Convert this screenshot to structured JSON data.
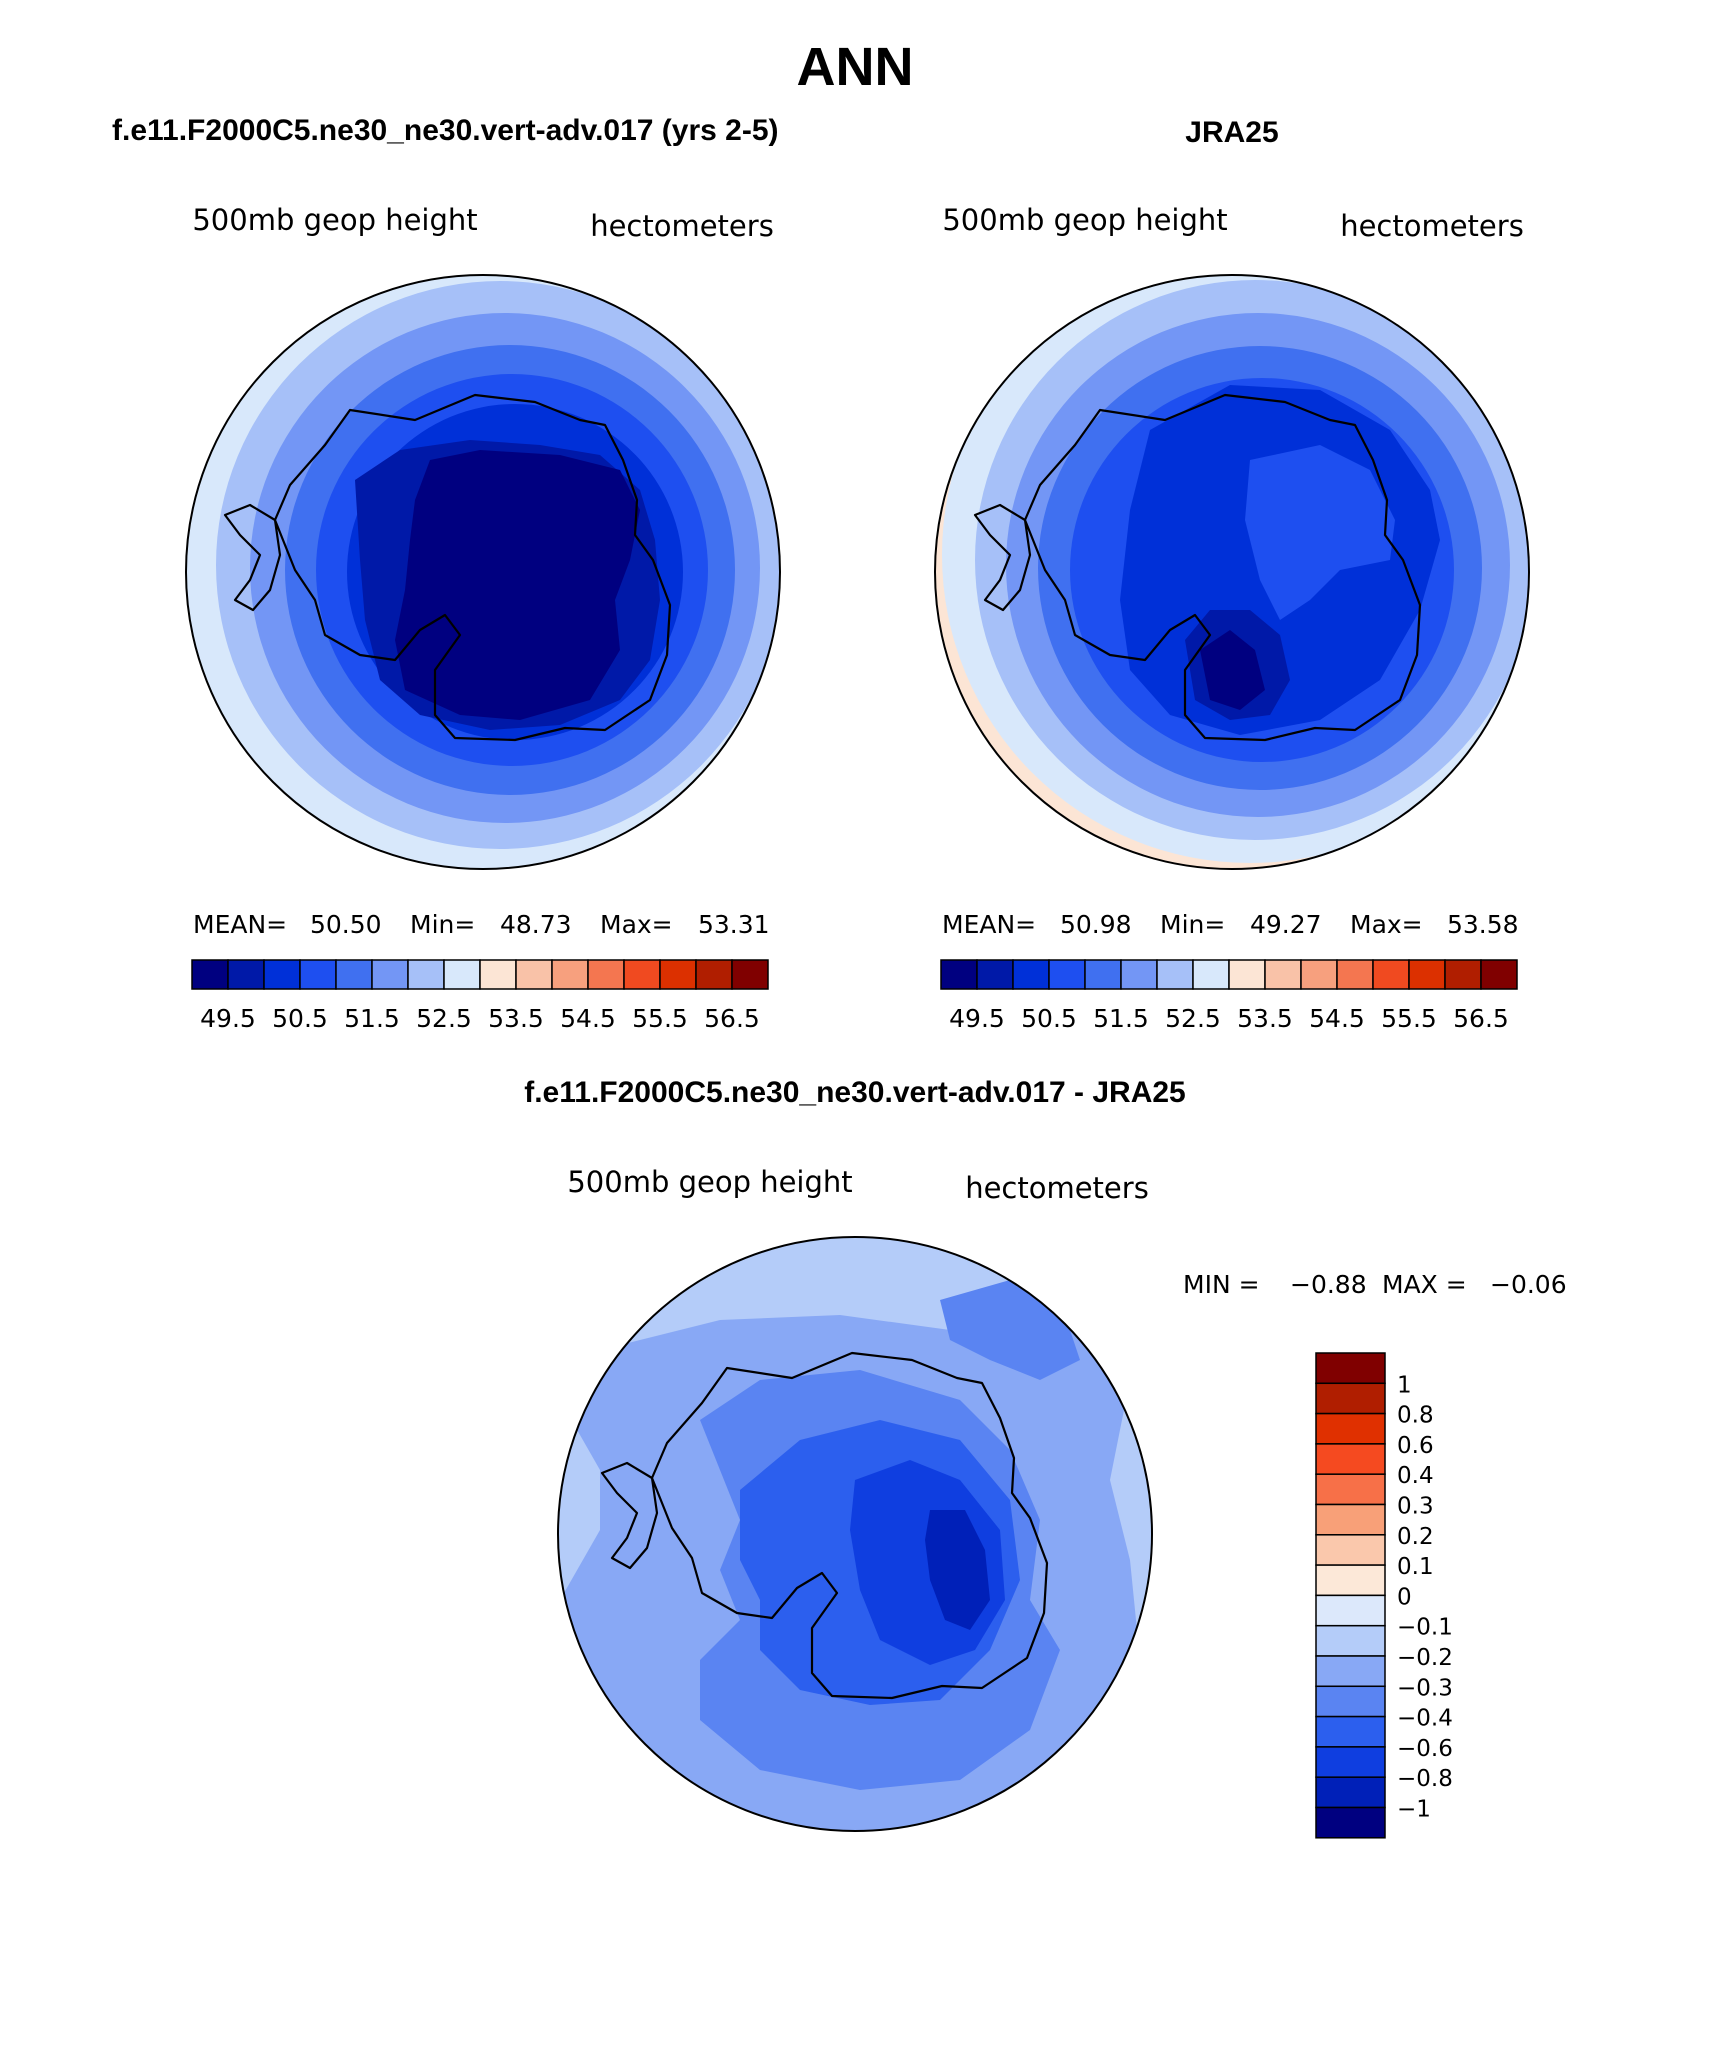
{
  "page": {
    "title": "ANN"
  },
  "panels": [
    {
      "id": "model",
      "header": "f.e11.F2000C5.ne30_ne30.vert-adv.017 (yrs 2-5)",
      "left_label": "500mb  geop  height",
      "right_label": "hectometers",
      "stats": {
        "mean_label": "MEAN=",
        "mean": "50.50",
        "min_label": "Min=",
        "min": "48.73",
        "max_label": "Max=",
        "max": "53.31"
      }
    },
    {
      "id": "obs",
      "header": "JRA25",
      "left_label": "500mb  geop  height",
      "right_label": "hectometers",
      "stats": {
        "mean_label": "MEAN=",
        "mean": "50.98",
        "min_label": "Min=",
        "min": "49.27",
        "max_label": "Max=",
        "max": "53.58"
      }
    },
    {
      "id": "diff",
      "header": "f.e11.F2000C5.ne30_ne30.vert-adv.017 - JRA25",
      "left_label": "500mb  geop  height",
      "right_label": "hectometers",
      "stats": {
        "min_label": "MIN =",
        "min": "−0.88",
        "max_label": "MAX =",
        "max": "−0.06"
      }
    }
  ],
  "colorbars": {
    "absolute": {
      "colors": [
        "#000080",
        "#0019A8",
        "#0030D8",
        "#1E4FF0",
        "#4070F0",
        "#7396F5",
        "#A6C0F8",
        "#D8E8FB",
        "#FCE5D5",
        "#F9C2A8",
        "#F7A07E",
        "#F47650",
        "#F04A20",
        "#DC3000",
        "#B01E00",
        "#800000"
      ],
      "tick_labels": [
        "49.5",
        "50.5",
        "51.5",
        "52.5",
        "53.5",
        "54.5",
        "55.5",
        "56.5"
      ]
    },
    "difference": {
      "colors": [
        "#800000",
        "#B01E00",
        "#E03000",
        "#F54A20",
        "#F77048",
        "#F8A078",
        "#FAC8AC",
        "#FCE8D8",
        "#DCE8FB",
        "#B4CCF9",
        "#88A8F5",
        "#5A84F2",
        "#2C5FEE",
        "#0F3EE0",
        "#0020B8",
        "#000080"
      ],
      "tick_labels": [
        "1",
        "0.8",
        "0.6",
        "0.4",
        "0.3",
        "0.2",
        "0.1",
        "0",
        "−0.1",
        "−0.2",
        "−0.3",
        "−0.4",
        "−0.6",
        "−0.8",
        "−1"
      ]
    }
  },
  "chart_data": [
    {
      "type": "heatmap",
      "title": "f.e11.F2000C5.ne30_ne30.vert-adv.017 (yrs 2-5)",
      "variable": "500mb geop height",
      "units": "hectometers",
      "projection": "south polar stereographic",
      "contour_levels": [
        49.5,
        49.75,
        50.0,
        50.25,
        50.5,
        50.75,
        51.0,
        51.25,
        51.5,
        51.75,
        52.0,
        52.25,
        52.5
      ],
      "statistics": {
        "mean": 50.5,
        "min": 48.73,
        "max": 53.31
      }
    },
    {
      "type": "heatmap",
      "title": "JRA25",
      "variable": "500mb geop height",
      "units": "hectometers",
      "projection": "south polar stereographic",
      "contour_levels": [
        49.5,
        49.75,
        50.0,
        50.25,
        50.5,
        50.75,
        51.0,
        51.25,
        51.5,
        51.75,
        52.0,
        52.25,
        52.5,
        53.0,
        53.5
      ],
      "statistics": {
        "mean": 50.98,
        "min": 49.27,
        "max": 53.58
      }
    },
    {
      "type": "heatmap",
      "title": "f.e11.F2000C5.ne30_ne30.vert-adv.017 - JRA25",
      "variable": "500mb geop height",
      "units": "hectometers",
      "projection": "south polar stereographic",
      "contour_levels": [
        -1,
        -0.8,
        -0.6,
        -0.4,
        -0.3,
        -0.2,
        -0.1,
        0,
        0.1,
        0.2,
        0.3,
        0.4,
        0.6,
        0.8,
        1
      ],
      "statistics": {
        "min": -0.88,
        "max": -0.06
      }
    }
  ]
}
